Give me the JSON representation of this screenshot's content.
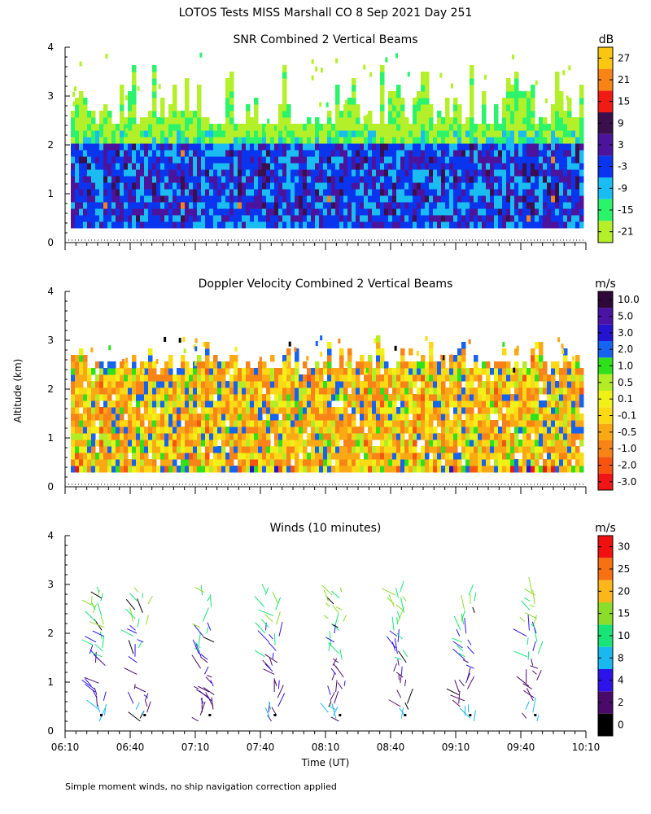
{
  "title": "LOTOS Tests MISS Marshall CO   8 Sep 2021 Day 251",
  "footnote": "Simple moment winds, no ship navigation correction applied",
  "ylabel": "Altitude (km)",
  "xlabel": "Time (UT)",
  "chart_data": [
    {
      "type": "heatmap",
      "title": "SNR Combined 2 Vertical Beams",
      "ylim": [
        0,
        4
      ],
      "y_ticks": [
        "0",
        "1",
        "2",
        "3",
        "4"
      ],
      "xlim": [
        "06:10",
        "10:10"
      ],
      "colorbar": {
        "unit": "dB",
        "labels": [
          "-21",
          "-15",
          "-9",
          "-3",
          "3",
          "9",
          "15",
          "21",
          "27"
        ],
        "colors": [
          "#b4f02a",
          "#2bf36a",
          "#19bdf1",
          "#0a35ef",
          "#4c149c",
          "#3a0f4c",
          "#f01c14",
          "#f88316",
          "#fac610"
        ]
      },
      "data_extent": {
        "altitude_min_km": 0.3,
        "altitude_core_top_km": 2.3,
        "altitude_max_km": 3.9
      }
    },
    {
      "type": "heatmap",
      "title": "Doppler Velocity Combined 2 Vertical Beams",
      "ylim": [
        0,
        4
      ],
      "y_ticks": [
        "0",
        "1",
        "2",
        "3",
        "4"
      ],
      "xlim": [
        "06:10",
        "10:10"
      ],
      "colorbar": {
        "unit": "m/s",
        "labels": [
          "-3.0",
          "-2.0",
          "-1.0",
          "-0.5",
          "-0.1",
          "0.1",
          "0.5",
          "1.0",
          "2.0",
          "3.0",
          "5.0",
          "10.0"
        ],
        "colors": [
          "#f21515",
          "#f7540f",
          "#f88317",
          "#fba815",
          "#fbd915",
          "#f1f11a",
          "#b4ec26",
          "#2fe11a",
          "#1563f0",
          "#2314d1",
          "#4a13a3",
          "#2e0838"
        ]
      },
      "data_extent": {
        "altitude_min_km": 0.3,
        "altitude_core_top_km": 2.4,
        "altitude_max_km": 3.1
      }
    },
    {
      "type": "wind_profile",
      "title": "Winds (10 minutes)",
      "ylim": [
        0,
        4
      ],
      "y_ticks": [
        "0",
        "1",
        "2",
        "3",
        "4"
      ],
      "xlim": [
        "06:10",
        "10:10"
      ],
      "x_ticks": [
        "06:10",
        "06:40",
        "07:10",
        "07:40",
        "08:10",
        "08:40",
        "09:10",
        "09:40",
        "10:10"
      ],
      "profile_times": [
        "06:25",
        "06:45",
        "07:15",
        "07:45",
        "08:15",
        "08:45",
        "09:15",
        "09:45"
      ],
      "colorbar": {
        "unit": "m/s",
        "labels": [
          "0",
          "2",
          "4",
          "8",
          "10",
          "15",
          "20",
          "25",
          "30"
        ],
        "colors": [
          "#000000",
          "#4a0a6a",
          "#2c14e8",
          "#19b8f0",
          "#18e478",
          "#8cdc2a",
          "#fab61a",
          "#f77112",
          "#f01010"
        ]
      },
      "profile_altitude_range_km": [
        0.2,
        2.9
      ]
    }
  ]
}
